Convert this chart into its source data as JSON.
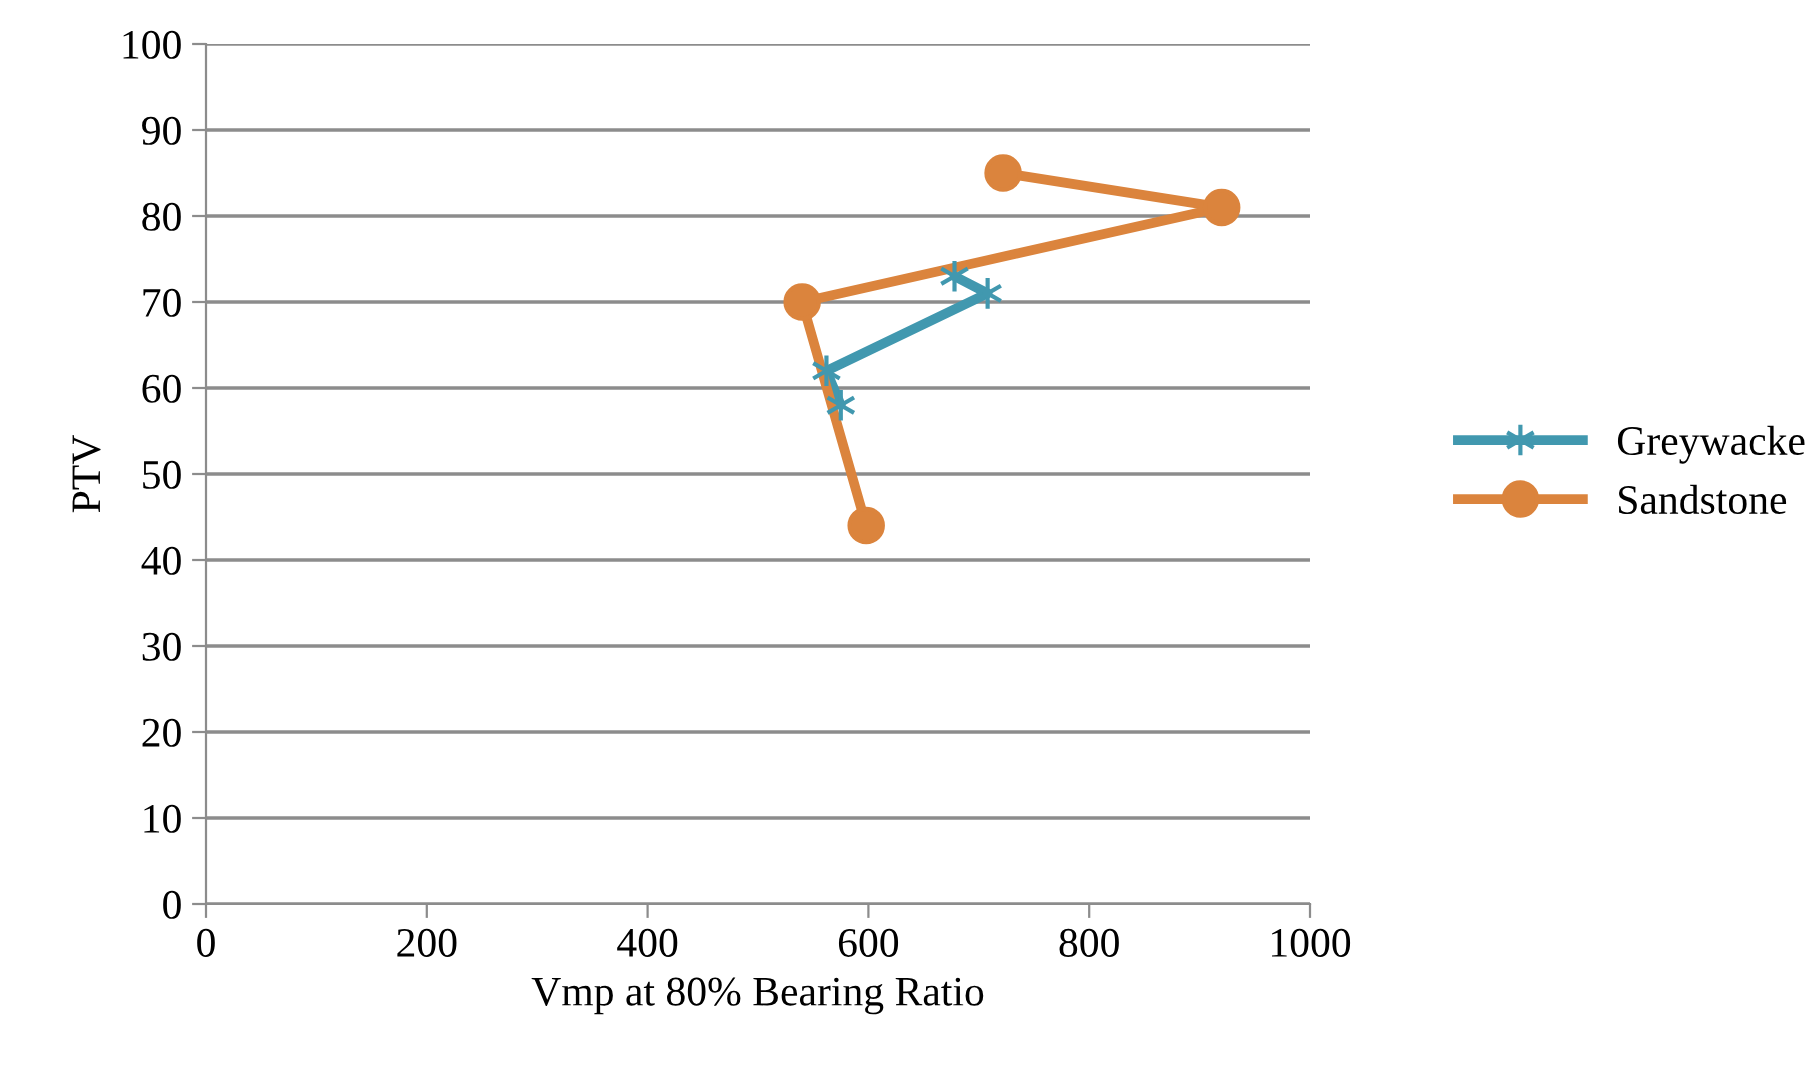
{
  "chart_data": {
    "type": "line",
    "xlabel": "Vmp at 80% Bearing Ratio",
    "ylabel": "PTV",
    "xlim": [
      0,
      1000
    ],
    "xticks": [
      0,
      200,
      400,
      600,
      800,
      1000
    ],
    "ylim": [
      0,
      100
    ],
    "yticks": [
      0,
      10,
      20,
      30,
      40,
      50,
      60,
      70,
      80,
      90,
      100
    ],
    "grid": "y",
    "legend": "right",
    "series": [
      {
        "name": "Greywacke",
        "color": "#4198af",
        "marker": "cross",
        "x": [
          575,
          562,
          708,
          678
        ],
        "values": [
          58,
          62,
          71,
          73
        ]
      },
      {
        "name": "Sandstone",
        "color": "#db843d",
        "marker": "circle",
        "x": [
          598,
          540,
          920,
          722
        ],
        "values": [
          44,
          70,
          81,
          85
        ]
      }
    ]
  }
}
